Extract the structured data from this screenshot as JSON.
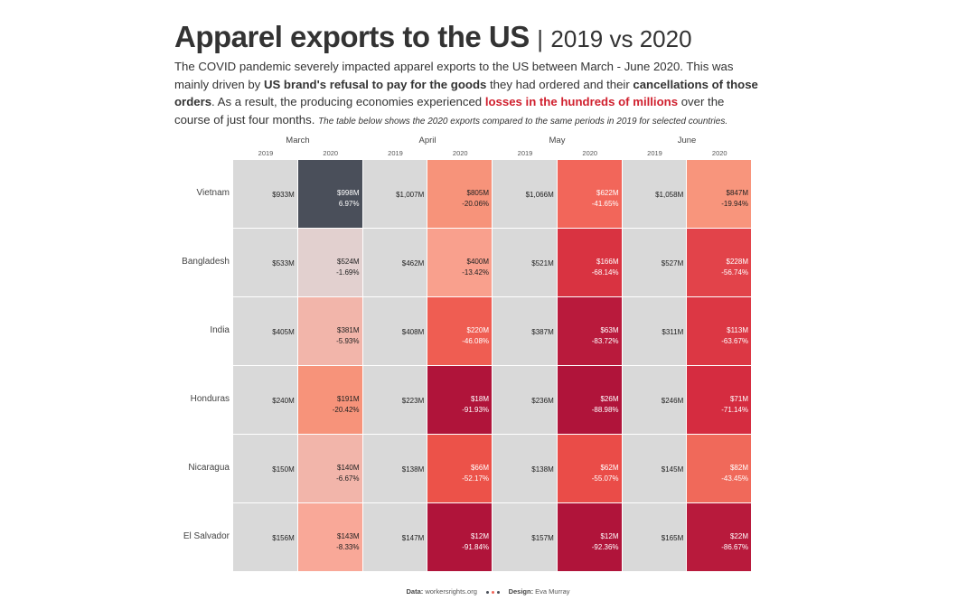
{
  "title": {
    "main": "Apparel exports to the US",
    "separator": "|",
    "sub": "2019 vs 2020"
  },
  "description": {
    "p1": "The COVID pandemic severely impacted apparel exports to the US between March - June 2020. This was mainly driven by ",
    "b1": "US brand's refusal to pay for the goods",
    "p2": " they had ordered and their ",
    "b2": "cancellations of those orders",
    "p3": ". As a result, the producing economies experienced ",
    "red": "losses in the hundreds of millions",
    "p4": " over the course of just four months. ",
    "italic": "The table below shows the 2020 exports compared to the same periods in 2019 for selected countries."
  },
  "colors": {
    "base_2019": "#d9d9d9",
    "highlight_red": "#d0202e",
    "positive": "#4a4f5a"
  },
  "chart_data": {
    "type": "table",
    "months": [
      "March",
      "April",
      "May",
      "June"
    ],
    "years": [
      "2019",
      "2020"
    ],
    "rows": [
      {
        "country": "Vietnam",
        "cells": [
          {
            "v2019": "$933M",
            "v2020": "$998M",
            "pct": "6.97%",
            "color": "#4a4f5a"
          },
          {
            "v2019": "$1,007M",
            "v2020": "$805M",
            "pct": "-20.06%",
            "color": "#f7937a"
          },
          {
            "v2019": "$1,066M",
            "v2020": "$622M",
            "pct": "-41.65%",
            "color": "#f2665a"
          },
          {
            "v2019": "$1,058M",
            "v2020": "$847M",
            "pct": "-19.94%",
            "color": "#f8957c"
          }
        ]
      },
      {
        "country": "Bangladesh",
        "cells": [
          {
            "v2019": "$533M",
            "v2020": "$524M",
            "pct": "-1.69%",
            "color": "#e2d0cf"
          },
          {
            "v2019": "$462M",
            "v2020": "$400M",
            "pct": "-13.42%",
            "color": "#f9a08d"
          },
          {
            "v2019": "$521M",
            "v2020": "$166M",
            "pct": "-68.14%",
            "color": "#d93341"
          },
          {
            "v2019": "$527M",
            "v2020": "$228M",
            "pct": "-56.74%",
            "color": "#e2434a"
          }
        ]
      },
      {
        "country": "India",
        "cells": [
          {
            "v2019": "$405M",
            "v2020": "$381M",
            "pct": "-5.93%",
            "color": "#f2b5aa"
          },
          {
            "v2019": "$408M",
            "v2020": "$220M",
            "pct": "-46.08%",
            "color": "#ef5d52"
          },
          {
            "v2019": "$387M",
            "v2020": "$63M",
            "pct": "-83.72%",
            "color": "#b91a3c"
          },
          {
            "v2019": "$311M",
            "v2020": "$113M",
            "pct": "-63.67%",
            "color": "#dc3744"
          }
        ]
      },
      {
        "country": "Honduras",
        "cells": [
          {
            "v2019": "$240M",
            "v2020": "$191M",
            "pct": "-20.42%",
            "color": "#f7937a"
          },
          {
            "v2019": "$223M",
            "v2020": "$18M",
            "pct": "-91.93%",
            "color": "#b0143a"
          },
          {
            "v2019": "$236M",
            "v2020": "$26M",
            "pct": "-88.98%",
            "color": "#b0143a"
          },
          {
            "v2019": "$246M",
            "v2020": "$71M",
            "pct": "-71.14%",
            "color": "#d52c40"
          }
        ]
      },
      {
        "country": "Nicaragua",
        "cells": [
          {
            "v2019": "$150M",
            "v2020": "$140M",
            "pct": "-6.67%",
            "color": "#f2b5aa"
          },
          {
            "v2019": "$138M",
            "v2020": "$66M",
            "pct": "-52.17%",
            "color": "#ec5249"
          },
          {
            "v2019": "$138M",
            "v2020": "$62M",
            "pct": "-55.07%",
            "color": "#ea4c48"
          },
          {
            "v2019": "$145M",
            "v2020": "$82M",
            "pct": "-43.45%",
            "color": "#f0695a"
          }
        ]
      },
      {
        "country": "El Salvador",
        "cells": [
          {
            "v2019": "$156M",
            "v2020": "$143M",
            "pct": "-8.33%",
            "color": "#f9a898"
          },
          {
            "v2019": "$147M",
            "v2020": "$12M",
            "pct": "-91.84%",
            "color": "#b0143a"
          },
          {
            "v2019": "$157M",
            "v2020": "$12M",
            "pct": "-92.36%",
            "color": "#b0143a"
          },
          {
            "v2019": "$165M",
            "v2020": "$22M",
            "pct": "-86.67%",
            "color": "#b81a3c"
          }
        ]
      }
    ]
  },
  "footer": {
    "data_label": "Data:",
    "data_value": "workersrights.org",
    "design_label": "Design:",
    "design_value": "Eva Murray",
    "dot_colors": [
      "#4a4f5a",
      "#f2665a",
      "#4a4f5a"
    ]
  }
}
